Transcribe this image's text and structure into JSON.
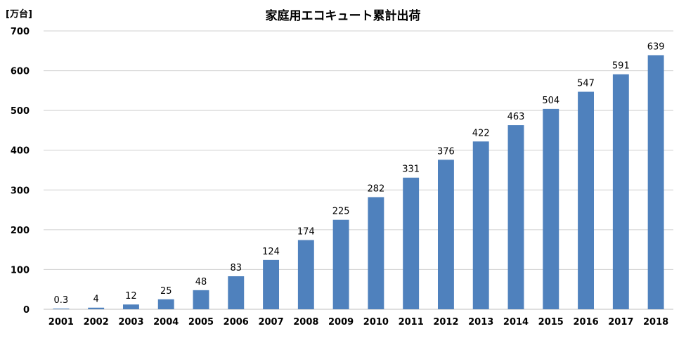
{
  "chart_data": {
    "type": "bar",
    "title": "家庭用エコキュート累計出荷",
    "unit_label": "[万台]",
    "categories": [
      "2001",
      "2002",
      "2003",
      "2004",
      "2005",
      "2006",
      "2007",
      "2008",
      "2009",
      "2010",
      "2011",
      "2012",
      "2013",
      "2014",
      "2015",
      "2016",
      "2017",
      "2018"
    ],
    "values": [
      0.3,
      4,
      12,
      25,
      48,
      83,
      124,
      174,
      225,
      282,
      331,
      376,
      422,
      463,
      504,
      547,
      591,
      639
    ],
    "value_labels": [
      "0.3",
      "4",
      "12",
      "25",
      "48",
      "83",
      "124",
      "174",
      "225",
      "282",
      "331",
      "376",
      "422",
      "463",
      "504",
      "547",
      "591",
      "639"
    ],
    "y_ticks": [
      "0",
      "100",
      "200",
      "300",
      "400",
      "500",
      "600",
      "700"
    ],
    "ylim": [
      0,
      700
    ],
    "grid": true,
    "legend": "none",
    "colors": {
      "bar": "#4f81bd",
      "grid": "#d0d0d0",
      "axis": "#bfbfbf",
      "text": "#000000"
    }
  }
}
